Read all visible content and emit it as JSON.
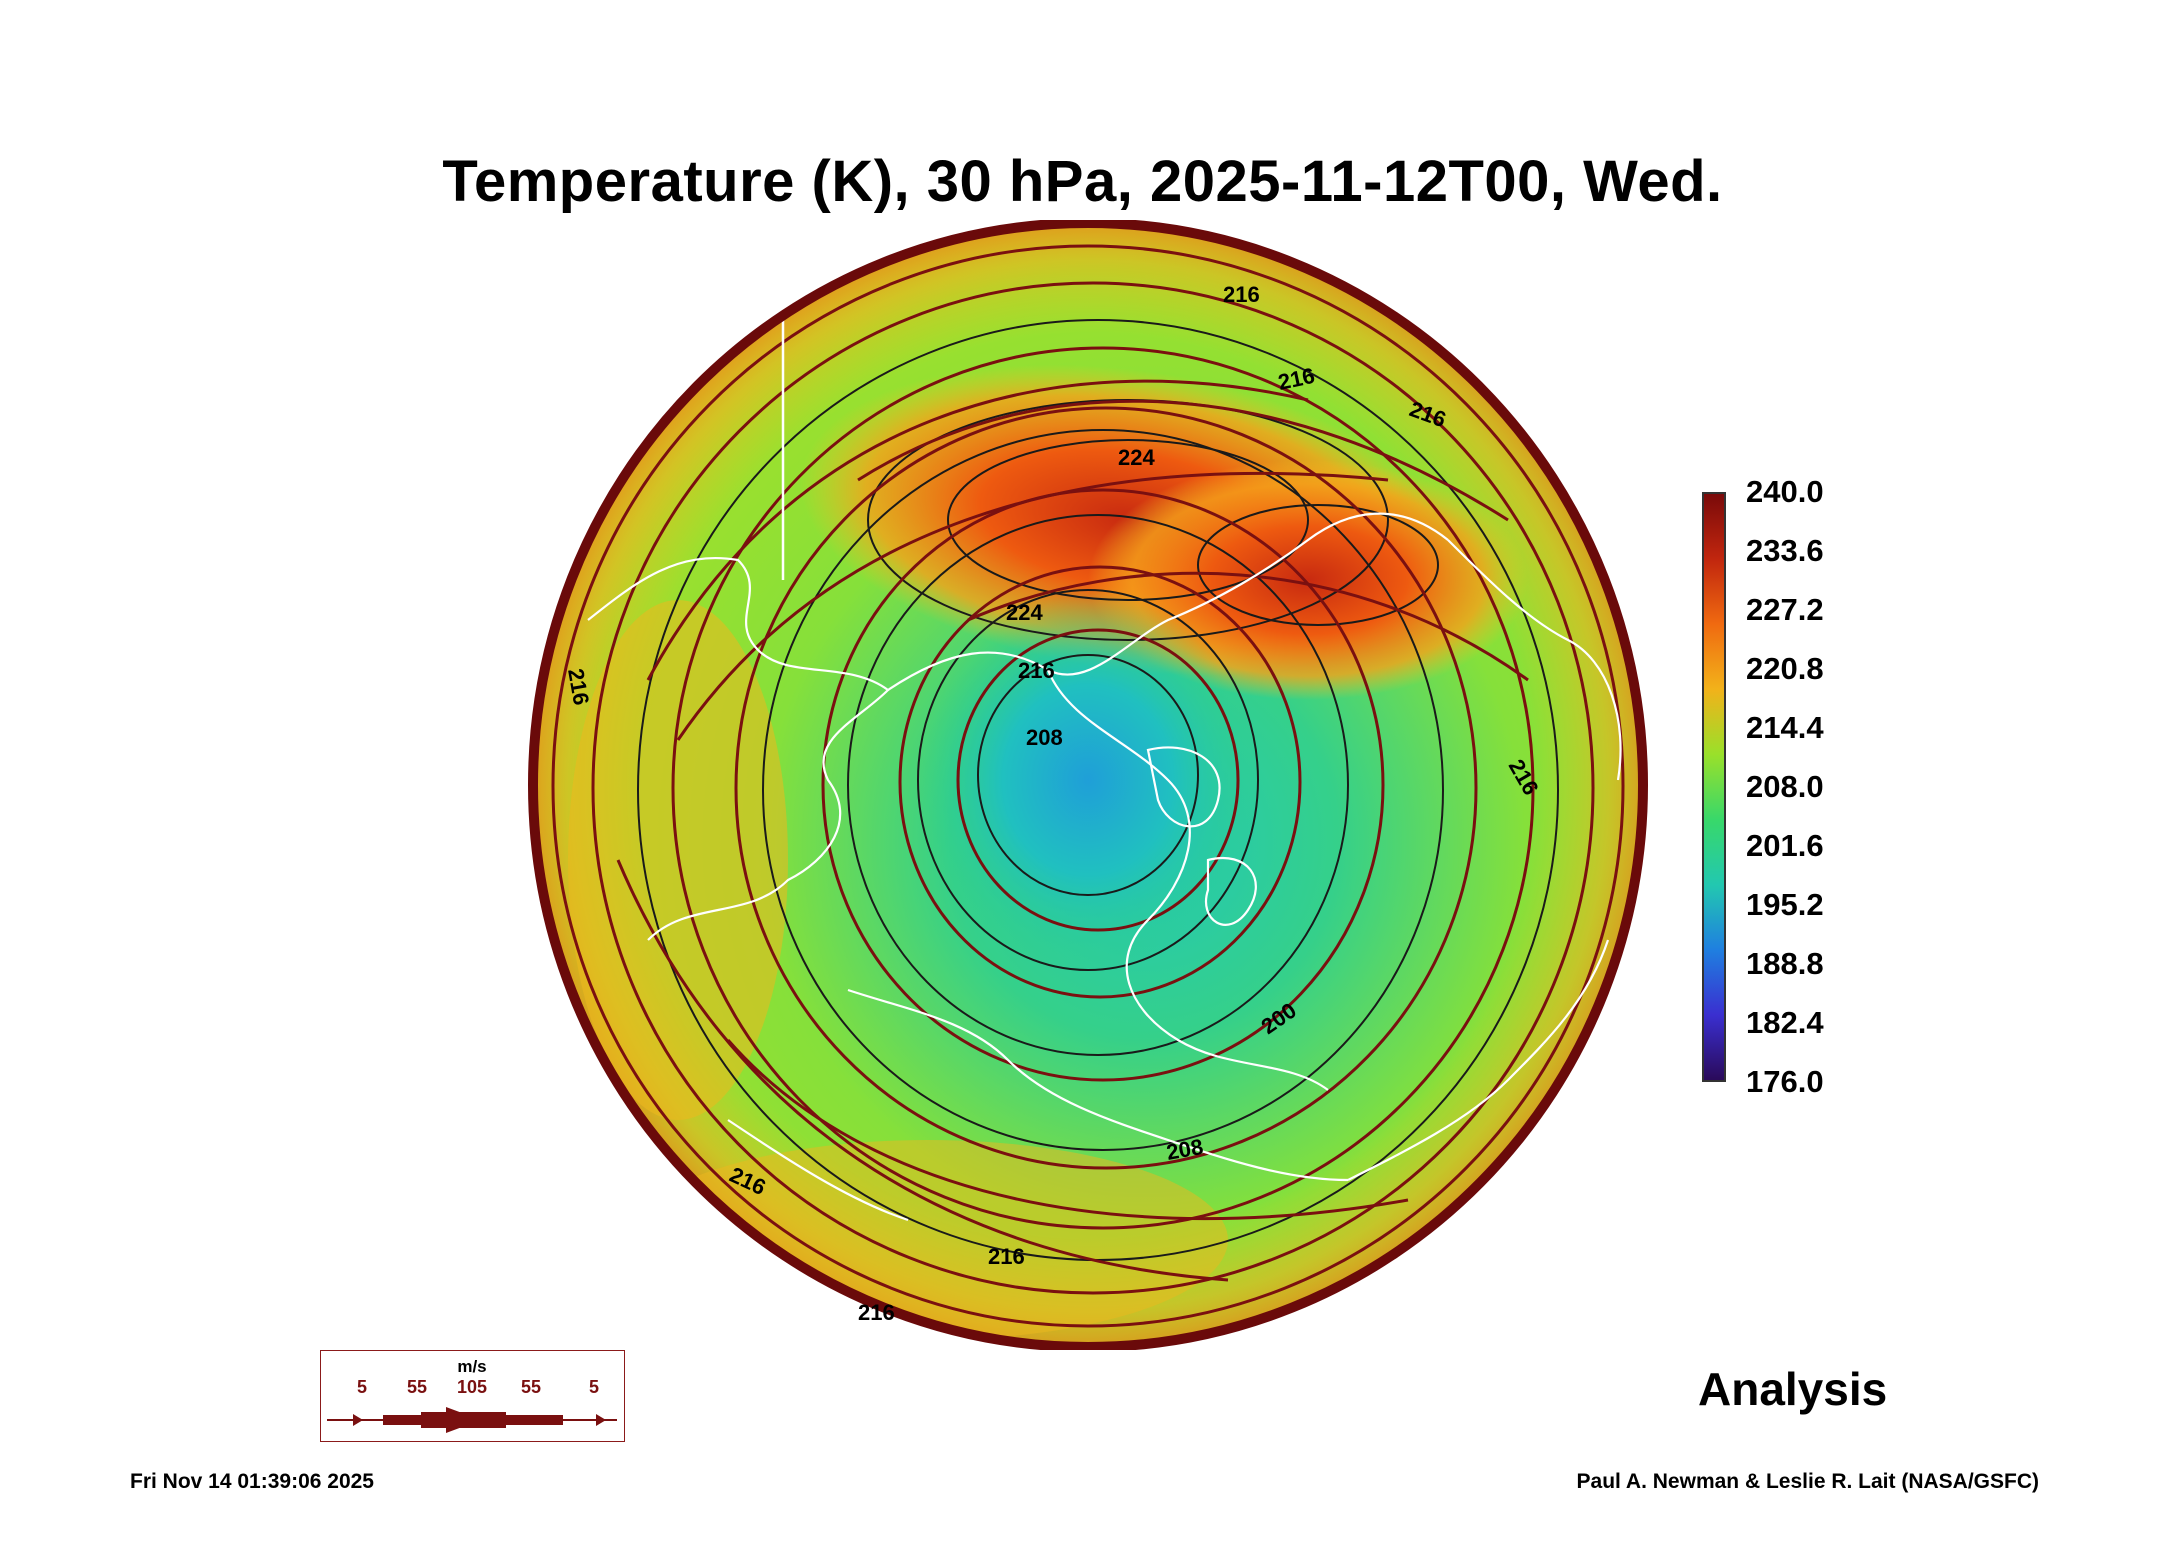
{
  "title": "Temperature (K), 30 hPa, 2025-11-12T00, Wed.",
  "colorbar": {
    "ticks": [
      "240.0",
      "233.6",
      "227.2",
      "220.8",
      "214.4",
      "208.0",
      "201.6",
      "195.2",
      "188.8",
      "182.4",
      "176.0"
    ],
    "min": 176.0,
    "max": 240.0,
    "colors": [
      "#7a0a0a",
      "#c1260e",
      "#f06a10",
      "#f2b21a",
      "#9ae02a",
      "#38d86a",
      "#22c8b0",
      "#1f7fe0",
      "#3a2fd0",
      "#2a0a5a"
    ]
  },
  "contour_labels": [
    "216",
    "216",
    "216",
    "224",
    "224",
    "216",
    "208",
    "216",
    "216",
    "200",
    "208",
    "216",
    "216",
    "216"
  ],
  "legend": {
    "unit": "m/s",
    "speeds": [
      "5",
      "55",
      "105",
      "55",
      "5"
    ]
  },
  "analysis_label": "Analysis",
  "timestamp": "Fri Nov 14 01:39:06 2025",
  "credit": "Paul A. Newman & Leslie R. Lait (NASA/GSFC)",
  "colors": {
    "streamline": "#7a1010",
    "contour": "#1a1a1a",
    "coastline": "#ffffff",
    "rim": "#6a0a0a"
  }
}
